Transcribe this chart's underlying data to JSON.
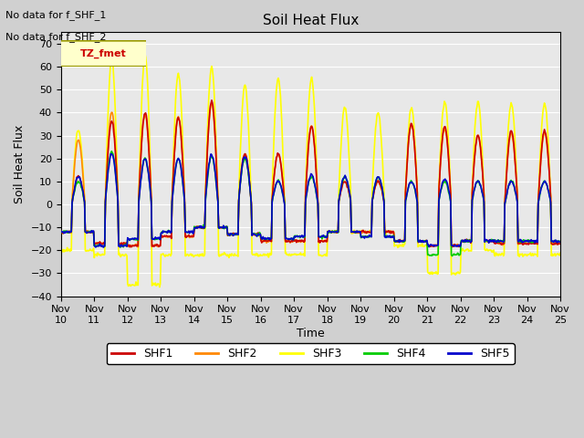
{
  "title": "Soil Heat Flux",
  "ylabel": "Soil Heat Flux",
  "xlabel": "Time",
  "no_data_text": [
    "No data for f_SHF_1",
    "No data for f_SHF_2"
  ],
  "tz_label": "TZ_fmet",
  "ylim": [
    -40,
    75
  ],
  "yticks": [
    -40,
    -30,
    -20,
    -10,
    0,
    10,
    20,
    30,
    40,
    50,
    60,
    70
  ],
  "bg_color": "#e8e8e8",
  "series_colors": {
    "SHF1": "#cc0000",
    "SHF2": "#ff8800",
    "SHF3": "#ffff00",
    "SHF4": "#00cc00",
    "SHF5": "#0000cc"
  },
  "legend_colors": [
    "#cc0000",
    "#ff8800",
    "#ffff00",
    "#00cc00",
    "#0000cc"
  ],
  "legend_labels": [
    "SHF1",
    "SHF2",
    "SHF3",
    "SHF4",
    "SHF5"
  ],
  "x_tick_labels": [
    "Nov 10",
    "Nov 11",
    "Nov 12",
    "Nov 13",
    "Nov 14",
    "Nov 15",
    "Nov 16",
    "Nov 17",
    "Nov 18",
    "Nov 19",
    "Nov 20",
    "Nov 21",
    "Nov 22",
    "Nov 23",
    "Nov 24",
    "Nov 25"
  ],
  "n_days": 15,
  "linewidth": 1.2,
  "shf3_peaks": [
    33,
    63,
    65,
    57,
    60,
    52,
    55,
    55,
    42,
    40,
    42,
    45,
    45,
    44,
    44
  ],
  "shf1_peaks": [
    12,
    36,
    40,
    38,
    45,
    22,
    22,
    34,
    10,
    10,
    35,
    34,
    30,
    32,
    32
  ],
  "shf2_peaks": [
    28,
    40,
    39,
    38,
    44,
    22,
    22,
    34,
    10,
    10,
    35,
    33,
    30,
    31,
    31
  ],
  "shf4_peaks": [
    10,
    23,
    20,
    20,
    21,
    20,
    10,
    12,
    12,
    12,
    10,
    10,
    10,
    10,
    10
  ],
  "shf5_peaks": [
    12,
    22,
    20,
    20,
    22,
    21,
    10,
    13,
    12,
    12,
    10,
    11,
    10,
    10,
    10
  ],
  "shf3_nights": [
    -20,
    -22,
    -35,
    -22,
    -22,
    -22,
    -22,
    -22,
    -12,
    -12,
    -18,
    -30,
    -20,
    -22,
    -22
  ],
  "shf1_nights": [
    -12,
    -17,
    -18,
    -14,
    -10,
    -13,
    -16,
    -16,
    -12,
    -12,
    -16,
    -18,
    -16,
    -17,
    -17
  ],
  "shf2_nights": [
    -12,
    -17,
    -18,
    -14,
    -10,
    -13,
    -16,
    -16,
    -12,
    -12,
    -16,
    -18,
    -16,
    -17,
    -17
  ],
  "shf4_nights": [
    -12,
    -18,
    -15,
    -12,
    -10,
    -13,
    -15,
    -14,
    -12,
    -14,
    -16,
    -22,
    -16,
    -16,
    -16
  ],
  "shf5_nights": [
    -12,
    -18,
    -15,
    -12,
    -10,
    -13,
    -15,
    -14,
    -12,
    -14,
    -16,
    -18,
    -16,
    -16,
    -16
  ]
}
